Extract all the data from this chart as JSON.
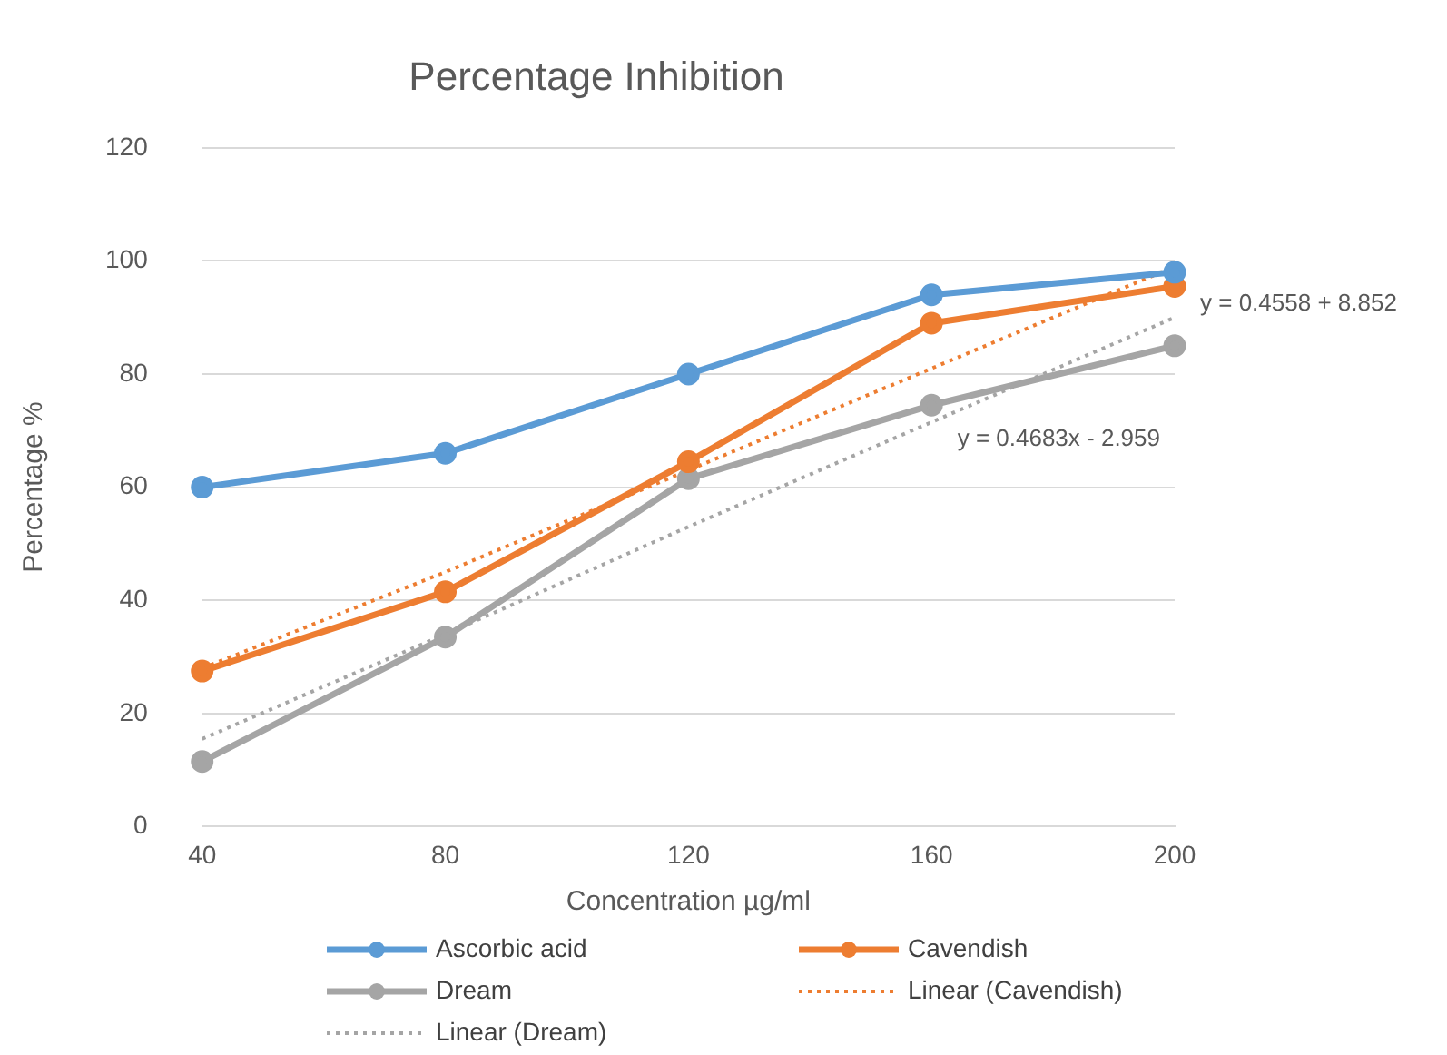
{
  "chart_data": {
    "type": "line",
    "title": "Percentage Inhibition",
    "xlabel": "Concentration µg/ml",
    "ylabel": "Percentage %",
    "categories": [
      "40",
      "80",
      "120",
      "160",
      "200"
    ],
    "series": [
      {
        "name": "Ascorbic acid",
        "color": "#5b9bd5",
        "values": [
          60,
          66,
          80,
          94,
          98
        ]
      },
      {
        "name": "Cavendish",
        "color": "#ed7d31",
        "values": [
          27.5,
          41.5,
          64.5,
          89,
          95.5
        ]
      },
      {
        "name": "Dream",
        "color": "#a5a5a5",
        "values": [
          11.5,
          33.5,
          61.5,
          74.5,
          85
        ]
      },
      {
        "name": "Linear (Cavendish)",
        "color": "#ed7d31",
        "line_style": "dotted",
        "marker": "none",
        "values": [
          28,
          45,
          63,
          81,
          99
        ]
      },
      {
        "name": "Linear (Dream)",
        "color": "#a5a5a5",
        "line_style": "dotted",
        "marker": "none",
        "values": [
          15.5,
          34,
          53,
          71.5,
          90
        ]
      }
    ],
    "annotations": [
      "y = 0.4558 + 8.852",
      "y = 0.4683x - 2.959"
    ],
    "marker": "circle",
    "line_style": "solid",
    "ylim": [
      0,
      120
    ],
    "yticks": [
      0,
      20,
      40,
      60,
      80,
      100,
      120
    ],
    "grid": "y",
    "legend": "bottom"
  }
}
